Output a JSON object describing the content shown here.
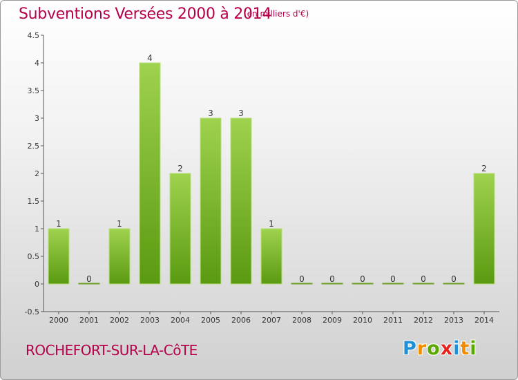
{
  "header": {
    "title": "Subventions Versées 2000 à 2014",
    "unit": "(en milliers d'€)"
  },
  "footer": {
    "place": "ROCHEFORT-SUR-LA-CôTE",
    "logo": [
      "P",
      "r",
      "o",
      "x",
      "i",
      "t",
      "i"
    ],
    "logo_colors": [
      "#1f8fd6",
      "#f28c00",
      "#5aa800",
      "#e8221a",
      "#1f8fd6",
      "#f28c00",
      "#5aa800"
    ]
  },
  "chart_data": {
    "type": "bar",
    "title": "Subventions Versées 2000 à 2014",
    "categories": [
      "2000",
      "2001",
      "2002",
      "2003",
      "2004",
      "2005",
      "2006",
      "2007",
      "2008",
      "2009",
      "2010",
      "2011",
      "2012",
      "2013",
      "2014"
    ],
    "values": [
      1,
      0,
      1,
      4,
      2,
      3,
      3,
      1,
      0,
      0,
      0,
      0,
      0,
      0,
      2
    ],
    "value_labels": [
      "1",
      "0",
      "1",
      "4",
      "2",
      "3",
      "3",
      "1",
      "0",
      "0",
      "0",
      "0",
      "0",
      "0",
      "2"
    ],
    "y_ticks": [
      "-0.5",
      "0",
      "0.5",
      "1",
      "1.5",
      "2",
      "2.5",
      "3",
      "3.5",
      "4",
      "4.5"
    ],
    "ylim": [
      -0.5,
      4.5
    ],
    "grid": false,
    "bar_color_light": "#9fd24e",
    "bar_color_dark": "#5a9a10",
    "label_color": "#b5004a"
  }
}
